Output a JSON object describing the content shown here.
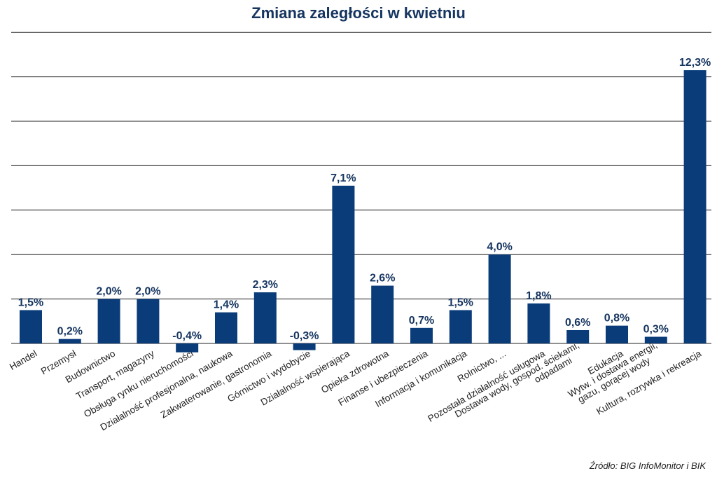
{
  "chart_data": {
    "type": "bar",
    "title": "Zmiana zaległości w kwietniu",
    "categories": [
      "Handel",
      "Przemysł",
      "Budownictwo",
      "Transport, magazyny",
      "Obsługa rynku nieruchomości",
      "Działalność profesjonalna, naukowa",
      "Zakwaterowanie, gastronomia",
      "Górnictwo i wydobycie",
      "Działalność wspierająca",
      "Opieka zdrowotna",
      "Finanse i ubezpieczenia",
      "Informacja i komunikacja",
      "Rolnictwo, ...",
      "Pozostała działalność usługowa",
      "Dostawa wody, gospod. ściekami, odpadami",
      "Edukacja",
      "Wytw. i dostawa energii, gazu, gorącej wody",
      "Kultura, rozrywka i rekreacja"
    ],
    "values": [
      1.5,
      0.2,
      2.0,
      2.0,
      -0.4,
      1.4,
      2.3,
      -0.3,
      7.1,
      2.6,
      0.7,
      1.5,
      4.0,
      1.8,
      0.6,
      0.8,
      0.3,
      12.3
    ],
    "data_labels": [
      "1,5%",
      "0,2%",
      "2,0%",
      "2,0%",
      "-0,4%",
      "1,4%",
      "2,3%",
      "-0,3%",
      "7,1%",
      "2,6%",
      "0,7%",
      "1,5%",
      "4,0%",
      "1,8%",
      "0,6%",
      "0,8%",
      "0,3%",
      "12,3%"
    ],
    "ylim": [
      0,
      14
    ],
    "gridlines": [
      2,
      4,
      6,
      8,
      10,
      12,
      14
    ],
    "grid": true,
    "legend": "none",
    "bar_color": "#0b3c7a",
    "source": "Źródło: BIG InfoMonitor i BIK"
  }
}
